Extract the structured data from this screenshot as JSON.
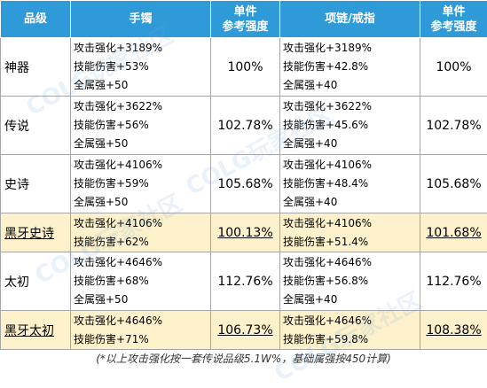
{
  "header": {
    "grade": "品级",
    "bracelet": "手镯",
    "single_strength_1": [
      "单件",
      "参考强度"
    ],
    "necklace_ring": "项链/戒指",
    "single_strength_2": [
      "单件",
      "参考强度"
    ]
  },
  "rows": [
    {
      "grade": "神器",
      "bracelet": [
        "攻击强化+3189%",
        "技能伤害+53%",
        "全属强+50"
      ],
      "bracelet_strength": "100%",
      "necklace": [
        "攻击强化+3189%",
        "技能伤害+42.8%",
        "全属强+40"
      ],
      "necklace_strength": "100%"
    },
    {
      "grade": "传说",
      "bracelet": [
        "攻击强化+3622%",
        "技能伤害+56%",
        "全属强+50"
      ],
      "bracelet_strength": "102.78%",
      "necklace": [
        "攻击强化+3622%",
        "技能伤害+45.6%",
        "全属强+40"
      ],
      "necklace_strength": "102.78%"
    },
    {
      "grade": "史诗",
      "bracelet": [
        "攻击强化+4106%",
        "技能伤害+59%",
        "全属强+50"
      ],
      "bracelet_strength": "105.68%",
      "necklace": [
        "攻击强化+4106%",
        "技能伤害+48.4%",
        "全属强+40"
      ],
      "necklace_strength": "105.68%"
    },
    {
      "grade": "黑牙史诗",
      "bracelet": [
        "攻击强化+4106%",
        "技能伤害+62%"
      ],
      "bracelet_strength": "100.13%",
      "necklace": [
        "攻击强化+4106%",
        "技能伤害+51.4%"
      ],
      "necklace_strength": "101.68%"
    },
    {
      "grade": "太初",
      "bracelet": [
        "攻击强化+4646%",
        "技能伤害+68%",
        "全属强+50"
      ],
      "bracelet_strength": "112.76%",
      "necklace": [
        "攻击强化+4646%",
        "技能伤害+56.8%",
        "全属强+40"
      ],
      "necklace_strength": "112.76%"
    },
    {
      "grade": "黑牙太初",
      "bracelet": [
        "攻击强化+4646%",
        "技能伤害+71%"
      ],
      "bracelet_strength": "106.73%",
      "necklace": [
        "攻击强化+4646%",
        "技能伤害+59.8%"
      ],
      "necklace_strength": "108.38%"
    }
  ],
  "footnote": "(*以上攻击强化按一套传说品级5.1W%，基础属强按450计算)",
  "watermark": "COLG玩家社区"
}
